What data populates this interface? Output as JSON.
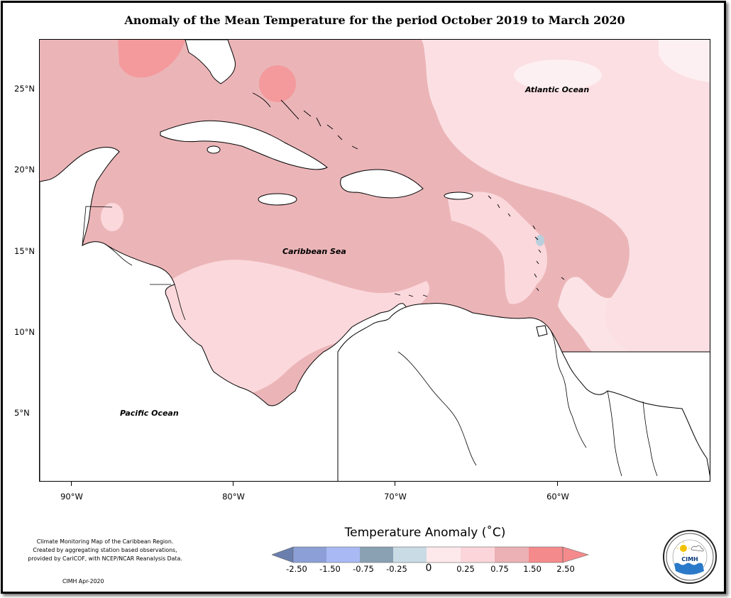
{
  "title": "Anomaly of the Mean Temperature for the period October 2019 to March 2020",
  "map": {
    "labels": {
      "atlantic": "Atlantic Ocean",
      "caribbean": "Caribbean Sea",
      "pacific": "Pacific Ocean"
    },
    "lat_ticks": [
      "25°N",
      "20°N",
      "15°N",
      "10°N",
      "5°N"
    ],
    "lon_ticks": [
      "90°W",
      "80°W",
      "70°W",
      "60°W"
    ],
    "colors": {
      "land": "#ffffff",
      "anom_0_025": "#fbe3e6",
      "anom_025_075": "#fbd8dc",
      "anom_075_150": "#ebb5b8",
      "anom_150_250": "#f49a9c",
      "anom_neg": "#a9c3d6"
    }
  },
  "legend": {
    "title": "Temperature Anomaly (˚C)",
    "labels": [
      "-2.50",
      "-1.50",
      "-0.75",
      "-0.25",
      "0",
      "0.25",
      "0.75",
      "1.50",
      "2.50"
    ],
    "colors": [
      "#6a7fae",
      "#8c9fd6",
      "#a9b9f4",
      "#8aa1b4",
      "#c9dbe4",
      "#fde9ec",
      "#fbd5da",
      "#ebb1b4",
      "#f58a8c"
    ]
  },
  "footnote": {
    "line1": "Climate Monitoring Map of the Caribbean Region.",
    "line2": "Created by aggregating station based observations,",
    "line3": "provided by CariCOF, with NCEP/NCAR Reanalysis Data.",
    "credit": "CIMH Apr-2020"
  },
  "logo": {
    "text": "CIMH"
  }
}
